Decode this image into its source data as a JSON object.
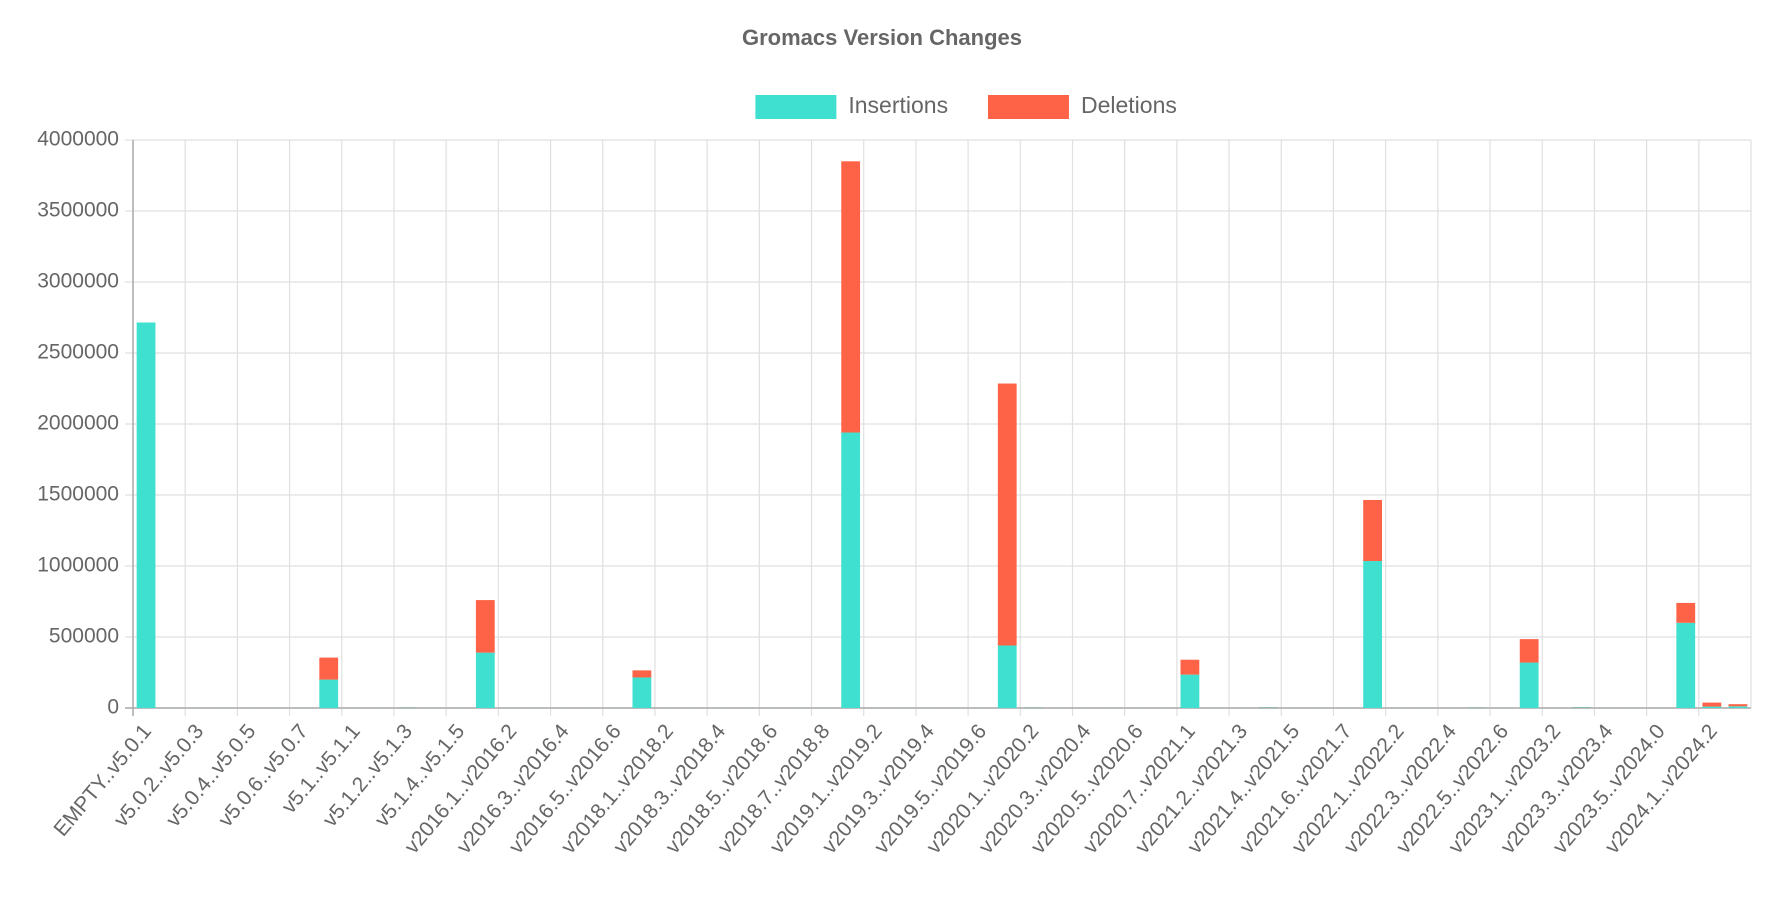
{
  "chart_data": {
    "type": "bar",
    "stacked": true,
    "title": "Gromacs Version Changes",
    "categories": [
      "EMPTY..v5.0.1",
      null,
      "v5.0.2..v5.0.3",
      null,
      "v5.0.4..v5.0.5",
      null,
      "v5.0.6..v5.0.7",
      null,
      "v5.1..v5.1.1",
      null,
      "v5.1.2..v5.1.3",
      null,
      "v5.1.4..v5.1.5",
      null,
      "v2016.1..v2016.2",
      null,
      "v2016.3..v2016.4",
      null,
      "v2016.5..v2016.6",
      null,
      "v2018.1..v2018.2",
      null,
      "v2018.3..v2018.4",
      null,
      "v2018.5..v2018.6",
      null,
      "v2018.7..v2018.8",
      null,
      "v2019.1..v2019.2",
      null,
      "v2019.3..v2019.4",
      null,
      "v2019.5..v2019.6",
      null,
      "v2020.1..v2020.2",
      null,
      "v2020.3..v2020.4",
      null,
      "v2020.5..v2020.6",
      null,
      "v2020.7..v2021.1",
      null,
      "v2021.2..v2021.3",
      null,
      "v2021.4..v2021.5",
      null,
      "v2021.6..v2021.7",
      null,
      "v2022.1..v2022.2",
      null,
      "v2022.3..v2022.4",
      null,
      "v2022.5..v2022.6",
      null,
      "v2023.1..v2023.2",
      null,
      "v2023.3..v2023.4",
      null,
      "v2023.5..v2024.0",
      null,
      "v2024.1..v2024.2",
      null
    ],
    "series": [
      {
        "name": "Insertions",
        "color": "#40e0d0",
        "values": [
          2715000,
          1000,
          1000,
          1000,
          1000,
          1000,
          1000,
          200000,
          1000,
          1000,
          3000,
          1000,
          1000,
          390000,
          1000,
          1000,
          1000,
          1000,
          1000,
          215000,
          1000,
          1000,
          1000,
          1000,
          1000,
          1000,
          1000,
          1940000,
          1000,
          1000,
          1000,
          1000,
          1000,
          440000,
          3000,
          1000,
          1000,
          1000,
          1000,
          1000,
          235000,
          1000,
          1000,
          4000,
          1000,
          1000,
          1000,
          1035000,
          1000,
          1000,
          1000,
          3000,
          1000,
          320000,
          1000,
          5000,
          1000,
          1000,
          1000,
          600000,
          10000,
          12000
        ]
      },
      {
        "name": "Deletions",
        "color": "#ff6347",
        "values": [
          0,
          500,
          500,
          500,
          500,
          500,
          500,
          155000,
          500,
          500,
          1500,
          500,
          500,
          370000,
          500,
          500,
          500,
          500,
          500,
          50000,
          500,
          500,
          500,
          500,
          500,
          500,
          500,
          1910000,
          500,
          500,
          500,
          500,
          500,
          1845000,
          1500,
          500,
          500,
          500,
          500,
          500,
          105000,
          500,
          500,
          2000,
          500,
          500,
          500,
          430000,
          500,
          500,
          500,
          1500,
          500,
          165000,
          500,
          2000,
          500,
          500,
          500,
          140000,
          28000,
          15000
        ]
      }
    ],
    "ylim": [
      0,
      4000000
    ],
    "yticks": [
      0,
      500000,
      1000000,
      1500000,
      2000000,
      2500000,
      3000000,
      3500000,
      4000000
    ],
    "grid": true,
    "legend": "top"
  }
}
